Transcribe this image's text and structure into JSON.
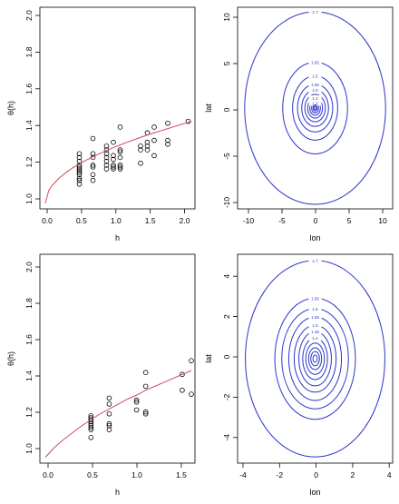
{
  "chart_data": [
    {
      "type": "scatter",
      "xlabel": "h",
      "ylabel": "θ(h)",
      "xlim": [
        -0.08,
        2.2
      ],
      "ylim": [
        0.97,
        2.03
      ],
      "xticks": [
        "0.0",
        "0.5",
        "1.0",
        "1.5",
        "2.0"
      ],
      "yticks": [
        "1.0",
        "1.2",
        "1.4",
        "1.6",
        "1.8",
        "2.0"
      ],
      "grid": false,
      "series": [
        {
          "kind": "points",
          "color": "#000000",
          "x": [
            0.5,
            0.5,
            0.5,
            0.5,
            0.5,
            0.5,
            0.5,
            0.5,
            0.5,
            0.5,
            0.5,
            0.5,
            0.7,
            0.7,
            0.7,
            0.7,
            0.7,
            0.7,
            0.7,
            0.9,
            0.9,
            0.9,
            0.9,
            0.9,
            0.9,
            0.9,
            1.0,
            1.0,
            1.0,
            1.0,
            1.0,
            1.0,
            1.1,
            1.1,
            1.1,
            1.1,
            1.1,
            1.1,
            1.1,
            1.4,
            1.4,
            1.4,
            1.5,
            1.5,
            1.5,
            1.5,
            1.6,
            1.6,
            1.6,
            1.8,
            1.8,
            1.8,
            2.1
          ],
          "y": [
            1.1,
            1.12,
            1.13,
            1.15,
            1.16,
            1.17,
            1.18,
            1.19,
            1.2,
            1.22,
            1.24,
            1.26,
            1.12,
            1.15,
            1.19,
            1.2,
            1.24,
            1.26,
            1.34,
            1.18,
            1.2,
            1.22,
            1.24,
            1.26,
            1.28,
            1.3,
            1.18,
            1.19,
            1.2,
            1.23,
            1.25,
            1.32,
            1.18,
            1.19,
            1.2,
            1.24,
            1.27,
            1.28,
            1.4,
            1.21,
            1.28,
            1.3,
            1.28,
            1.3,
            1.32,
            1.37,
            1.25,
            1.33,
            1.4,
            1.31,
            1.33,
            1.42,
            1.43
          ]
        },
        {
          "kind": "curve",
          "color": "#d04a5e",
          "x": [
            0.0,
            0.05,
            0.1,
            0.2,
            0.3,
            0.4,
            0.5,
            0.6,
            0.7,
            0.8,
            0.9,
            1.0,
            1.1,
            1.2,
            1.3,
            1.4,
            1.5,
            1.6,
            1.7,
            1.8,
            1.9,
            2.0,
            2.1,
            2.15
          ],
          "y": [
            1.0,
            1.066,
            1.093,
            1.131,
            1.16,
            1.185,
            1.206,
            1.226,
            1.244,
            1.261,
            1.277,
            1.292,
            1.306,
            1.32,
            1.333,
            1.346,
            1.358,
            1.37,
            1.381,
            1.392,
            1.403,
            1.414,
            1.424,
            1.429
          ]
        }
      ]
    },
    {
      "type": "contour",
      "xlabel": "lon",
      "ylabel": "lat",
      "xlim": [
        -11,
        11
      ],
      "ylim": [
        -11,
        11
      ],
      "xticks": [
        "-10",
        "-5",
        "0",
        "5",
        "10"
      ],
      "yticks": [
        "-10",
        "-5",
        "0",
        "5",
        "10"
      ],
      "color": "#2b35c8",
      "levels": [
        {
          "label": "1.7",
          "rx": 10.0,
          "ry": 10.5
        },
        {
          "label": "1.65",
          "rx": 4.6,
          "ry": 5.0
        },
        {
          "label": "1.6",
          "rx": 3.2,
          "ry": 3.5
        },
        {
          "label": "1.55",
          "rx": 2.5,
          "ry": 2.6
        },
        {
          "label": "1.5",
          "rx": 1.9,
          "ry": 2.0
        },
        {
          "label": "1.45",
          "rx": 1.45,
          "ry": 1.5
        },
        {
          "label": "1.4",
          "rx": 1.05,
          "ry": 1.1
        },
        {
          "label": "1.35",
          "rx": 0.75,
          "ry": 0.8
        },
        {
          "label": "1.3",
          "rx": 0.5,
          "ry": 0.55
        },
        {
          "label": "1.25",
          "rx": 0.3,
          "ry": 0.33
        },
        {
          "label": "1.2",
          "rx": 0.15,
          "ry": 0.17
        }
      ],
      "shown_labels": [
        "1.7",
        "1.65",
        "1.6",
        "1.5",
        "1.4",
        "1.3",
        "1.55"
      ]
    },
    {
      "type": "scatter",
      "xlabel": "h",
      "ylabel": "θ(h)",
      "xlim": [
        -0.06,
        1.64
      ],
      "ylim": [
        0.97,
        2.03
      ],
      "xticks": [
        "0.0",
        "0.5",
        "1.0",
        "1.5"
      ],
      "yticks": [
        "1.0",
        "1.2",
        "1.4",
        "1.6",
        "1.8",
        "2.0"
      ],
      "grid": false,
      "series": [
        {
          "kind": "points",
          "color": "#000000",
          "x": [
            0.5,
            0.5,
            0.5,
            0.5,
            0.5,
            0.5,
            0.5,
            0.5,
            0.5,
            0.7,
            0.7,
            0.7,
            0.7,
            0.7,
            0.7,
            1.0,
            1.0,
            1.0,
            1.1,
            1.1,
            1.1,
            1.1,
            1.5,
            1.5,
            1.6,
            1.6
          ],
          "y": [
            1.1,
            1.14,
            1.15,
            1.16,
            1.17,
            1.18,
            1.19,
            1.2,
            1.21,
            1.14,
            1.16,
            1.17,
            1.22,
            1.27,
            1.3,
            1.24,
            1.28,
            1.29,
            1.22,
            1.23,
            1.36,
            1.43,
            1.34,
            1.42,
            1.32,
            1.49
          ]
        },
        {
          "kind": "curve",
          "color": "#d04a5e",
          "x": [
            0.0,
            0.1,
            0.2,
            0.3,
            0.4,
            0.5,
            0.6,
            0.7,
            0.8,
            0.9,
            1.0,
            1.1,
            1.2,
            1.3,
            1.4,
            1.5,
            1.6
          ],
          "y": [
            1.0,
            1.05,
            1.09,
            1.125,
            1.16,
            1.19,
            1.22,
            1.245,
            1.27,
            1.295,
            1.315,
            1.34,
            1.36,
            1.38,
            1.4,
            1.42,
            1.44
          ]
        }
      ]
    },
    {
      "type": "contour",
      "xlabel": "lon",
      "ylabel": "lat",
      "xlim": [
        -5,
        5
      ],
      "ylim": [
        -5,
        5
      ],
      "xticks": [
        "-4",
        "-2",
        "0",
        "2",
        "4"
      ],
      "yticks": [
        "-4",
        "-2",
        "0",
        "2",
        "4"
      ],
      "color": "#2b35c8",
      "levels": [
        {
          "label": "1.7",
          "rx": 4.5,
          "ry": 4.7
        },
        {
          "label": "1.65",
          "rx": 2.6,
          "ry": 2.9
        },
        {
          "label": "1.6",
          "rx": 2.15,
          "ry": 2.4
        },
        {
          "label": "1.55",
          "rx": 1.7,
          "ry": 2.0
        },
        {
          "label": "1.5",
          "rx": 1.35,
          "ry": 1.6
        },
        {
          "label": "1.45",
          "rx": 1.05,
          "ry": 1.3
        },
        {
          "label": "1.4",
          "rx": 0.8,
          "ry": 1.0
        },
        {
          "label": "1.35",
          "rx": 0.6,
          "ry": 0.75
        },
        {
          "label": "1.3",
          "rx": 0.42,
          "ry": 0.52
        },
        {
          "label": "1.25",
          "rx": 0.28,
          "ry": 0.34
        },
        {
          "label": "1.2",
          "rx": 0.14,
          "ry": 0.18
        }
      ],
      "shown_labels": [
        "1.7",
        "1.65",
        "1.5",
        "1.4",
        "1.45",
        "1.55",
        "1.6"
      ]
    }
  ]
}
